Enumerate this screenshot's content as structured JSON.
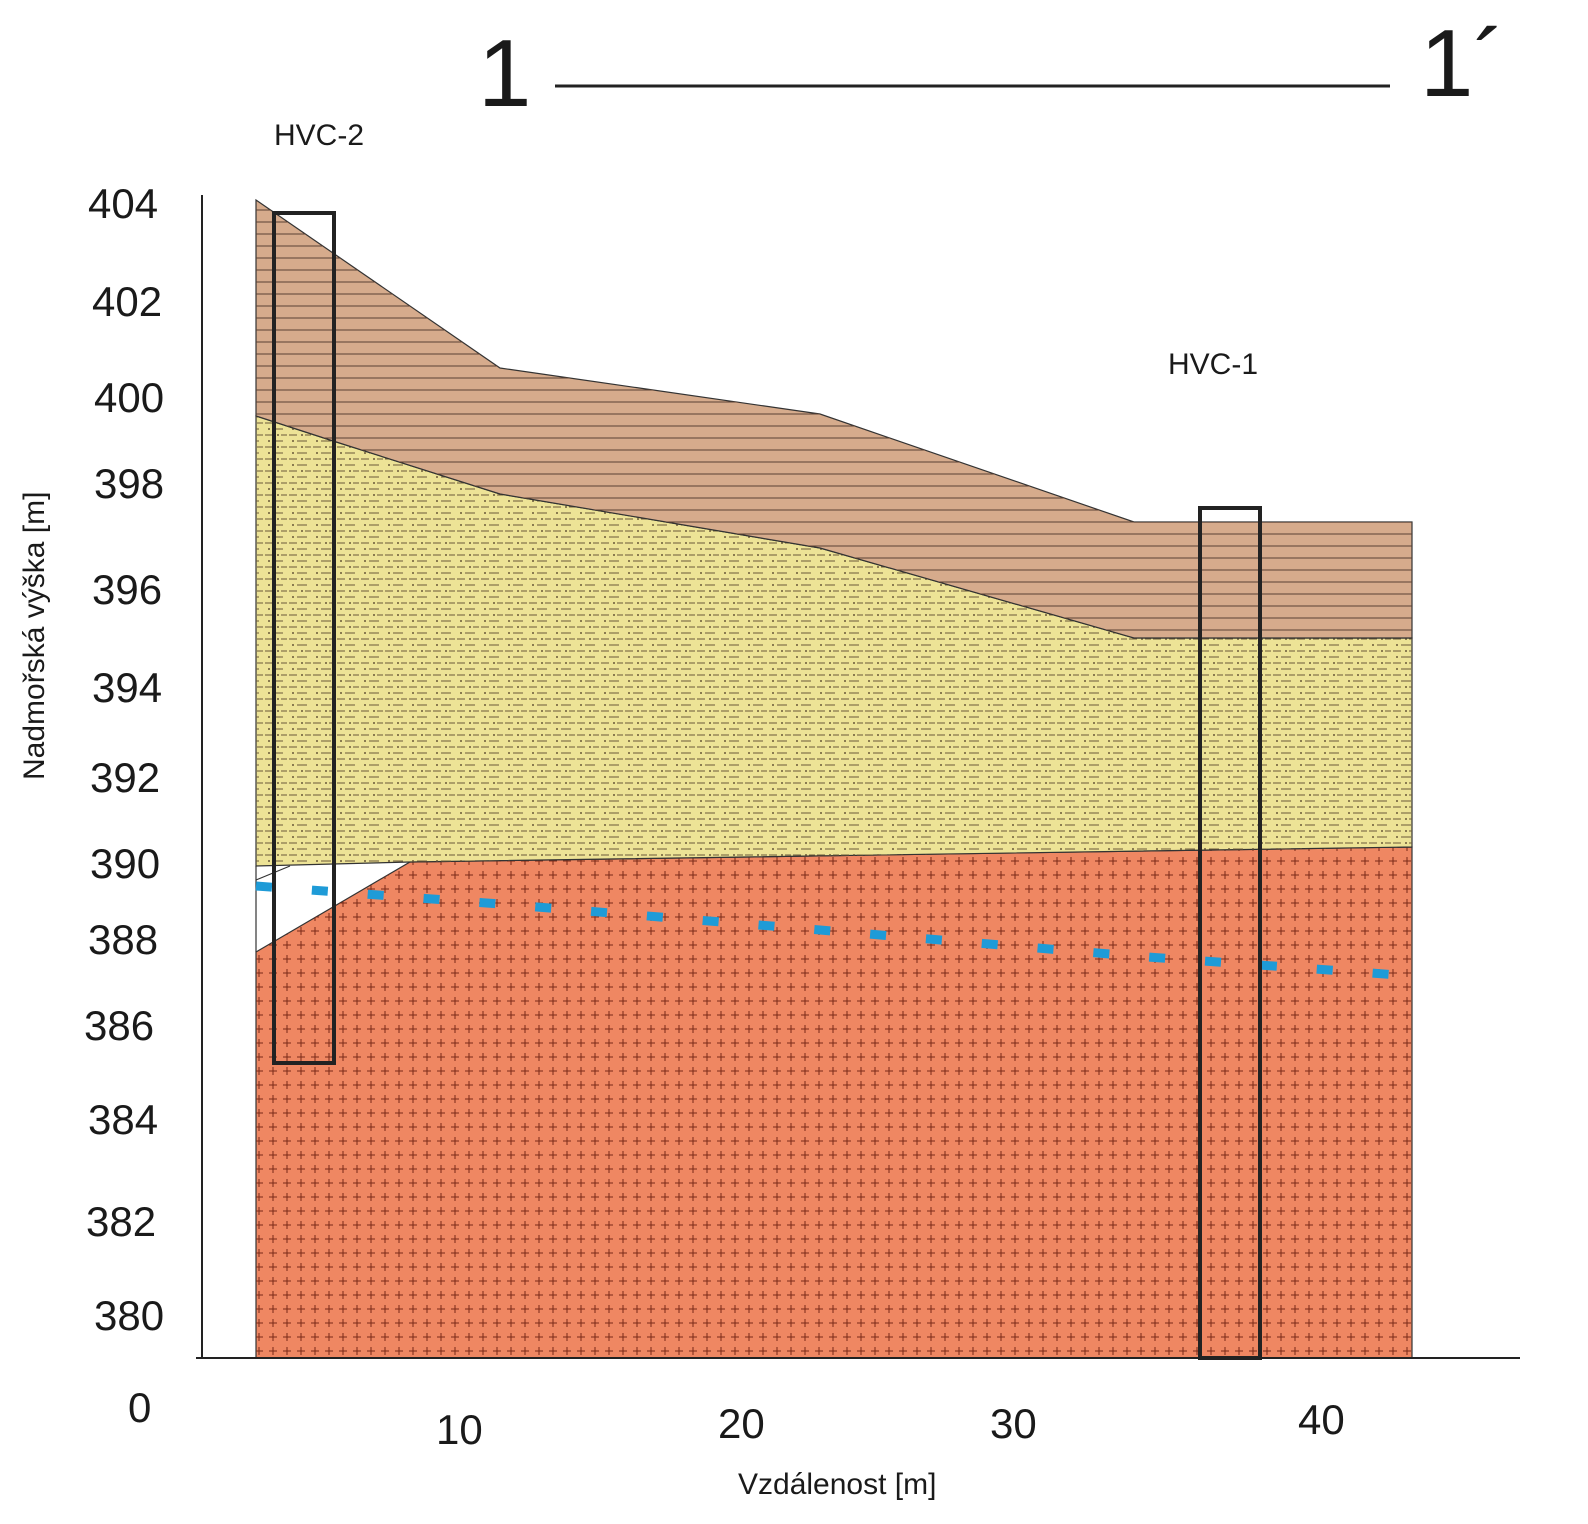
{
  "profile": {
    "start_marker": "1",
    "end_marker": "1´"
  },
  "boreholes": [
    {
      "id": "HVC-2"
    },
    {
      "id": "HVC-1"
    }
  ],
  "axes": {
    "y_title": "Nadmořská výška [m]",
    "x_title": "Vzdálenost [m]",
    "y_ticks": [
      "404",
      "402",
      "400",
      "398",
      "396",
      "394",
      "392",
      "390",
      "388",
      "386",
      "384",
      "382",
      "380"
    ],
    "x_ticks": [
      "0",
      "10",
      "20",
      "30",
      "40"
    ]
  },
  "colors": {
    "topsoil": "#d6ab8c",
    "loam": "#ede396",
    "granite": "#ef8762",
    "water_table": "#1e9bd7",
    "outline": "#222222"
  }
}
